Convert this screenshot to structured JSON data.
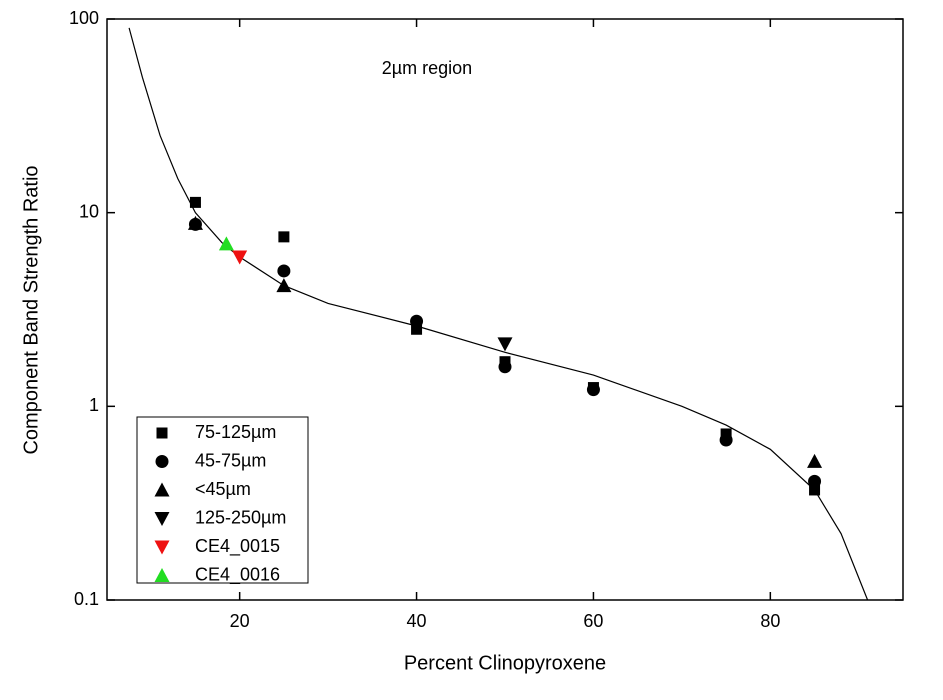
{
  "chart_data": {
    "type": "scatter",
    "annotation": "2µm region",
    "xlabel": "Percent Clinopyroxene",
    "ylabel": "Component Band Strength Ratio",
    "xlim": [
      5,
      95
    ],
    "xticks": [
      20,
      40,
      60,
      80
    ],
    "ylim": [
      0.1,
      100
    ],
    "yticks": [
      0.1,
      1,
      10,
      100
    ],
    "yscale": "log",
    "legend": "lower left",
    "series": [
      {
        "name": "75-125µm",
        "color": "#000000",
        "marker": "square",
        "x": [
          15,
          25,
          40,
          50,
          60,
          75,
          85
        ],
        "values": [
          11.3,
          7.5,
          2.5,
          1.7,
          1.25,
          0.72,
          0.37
        ]
      },
      {
        "name": "45-75µm",
        "color": "#000000",
        "marker": "circle",
        "x": [
          15,
          25,
          40,
          50,
          60,
          75,
          85
        ],
        "values": [
          8.7,
          5.0,
          2.75,
          1.6,
          1.22,
          0.67,
          0.41
        ]
      },
      {
        "name": "<45µm",
        "color": "#000000",
        "marker": "triangle-up",
        "x": [
          15,
          25,
          85
        ],
        "values": [
          8.8,
          4.2,
          0.52
        ]
      },
      {
        "name": "125-250µm",
        "color": "#000000",
        "marker": "triangle-down",
        "x": [
          50
        ],
        "values": [
          2.1
        ]
      },
      {
        "name": "CE4_0015",
        "color": "#ee1111",
        "marker": "triangle-down",
        "x": [
          20
        ],
        "values": [
          5.9
        ]
      },
      {
        "name": "CE4_0016",
        "color": "#22dd22",
        "marker": "triangle-up",
        "x": [
          18.5
        ],
        "values": [
          6.9
        ]
      }
    ],
    "fit": {
      "color": "#000000",
      "x": [
        7.5,
        9,
        11,
        13,
        15,
        18,
        20,
        25,
        30,
        40,
        50,
        60,
        70,
        75,
        80,
        85,
        88,
        91
      ],
      "values": [
        90,
        50,
        25,
        15,
        10,
        7,
        5.9,
        4.2,
        3.4,
        2.6,
        1.9,
        1.45,
        1.0,
        0.8,
        0.6,
        0.37,
        0.22,
        0.1
      ]
    }
  }
}
